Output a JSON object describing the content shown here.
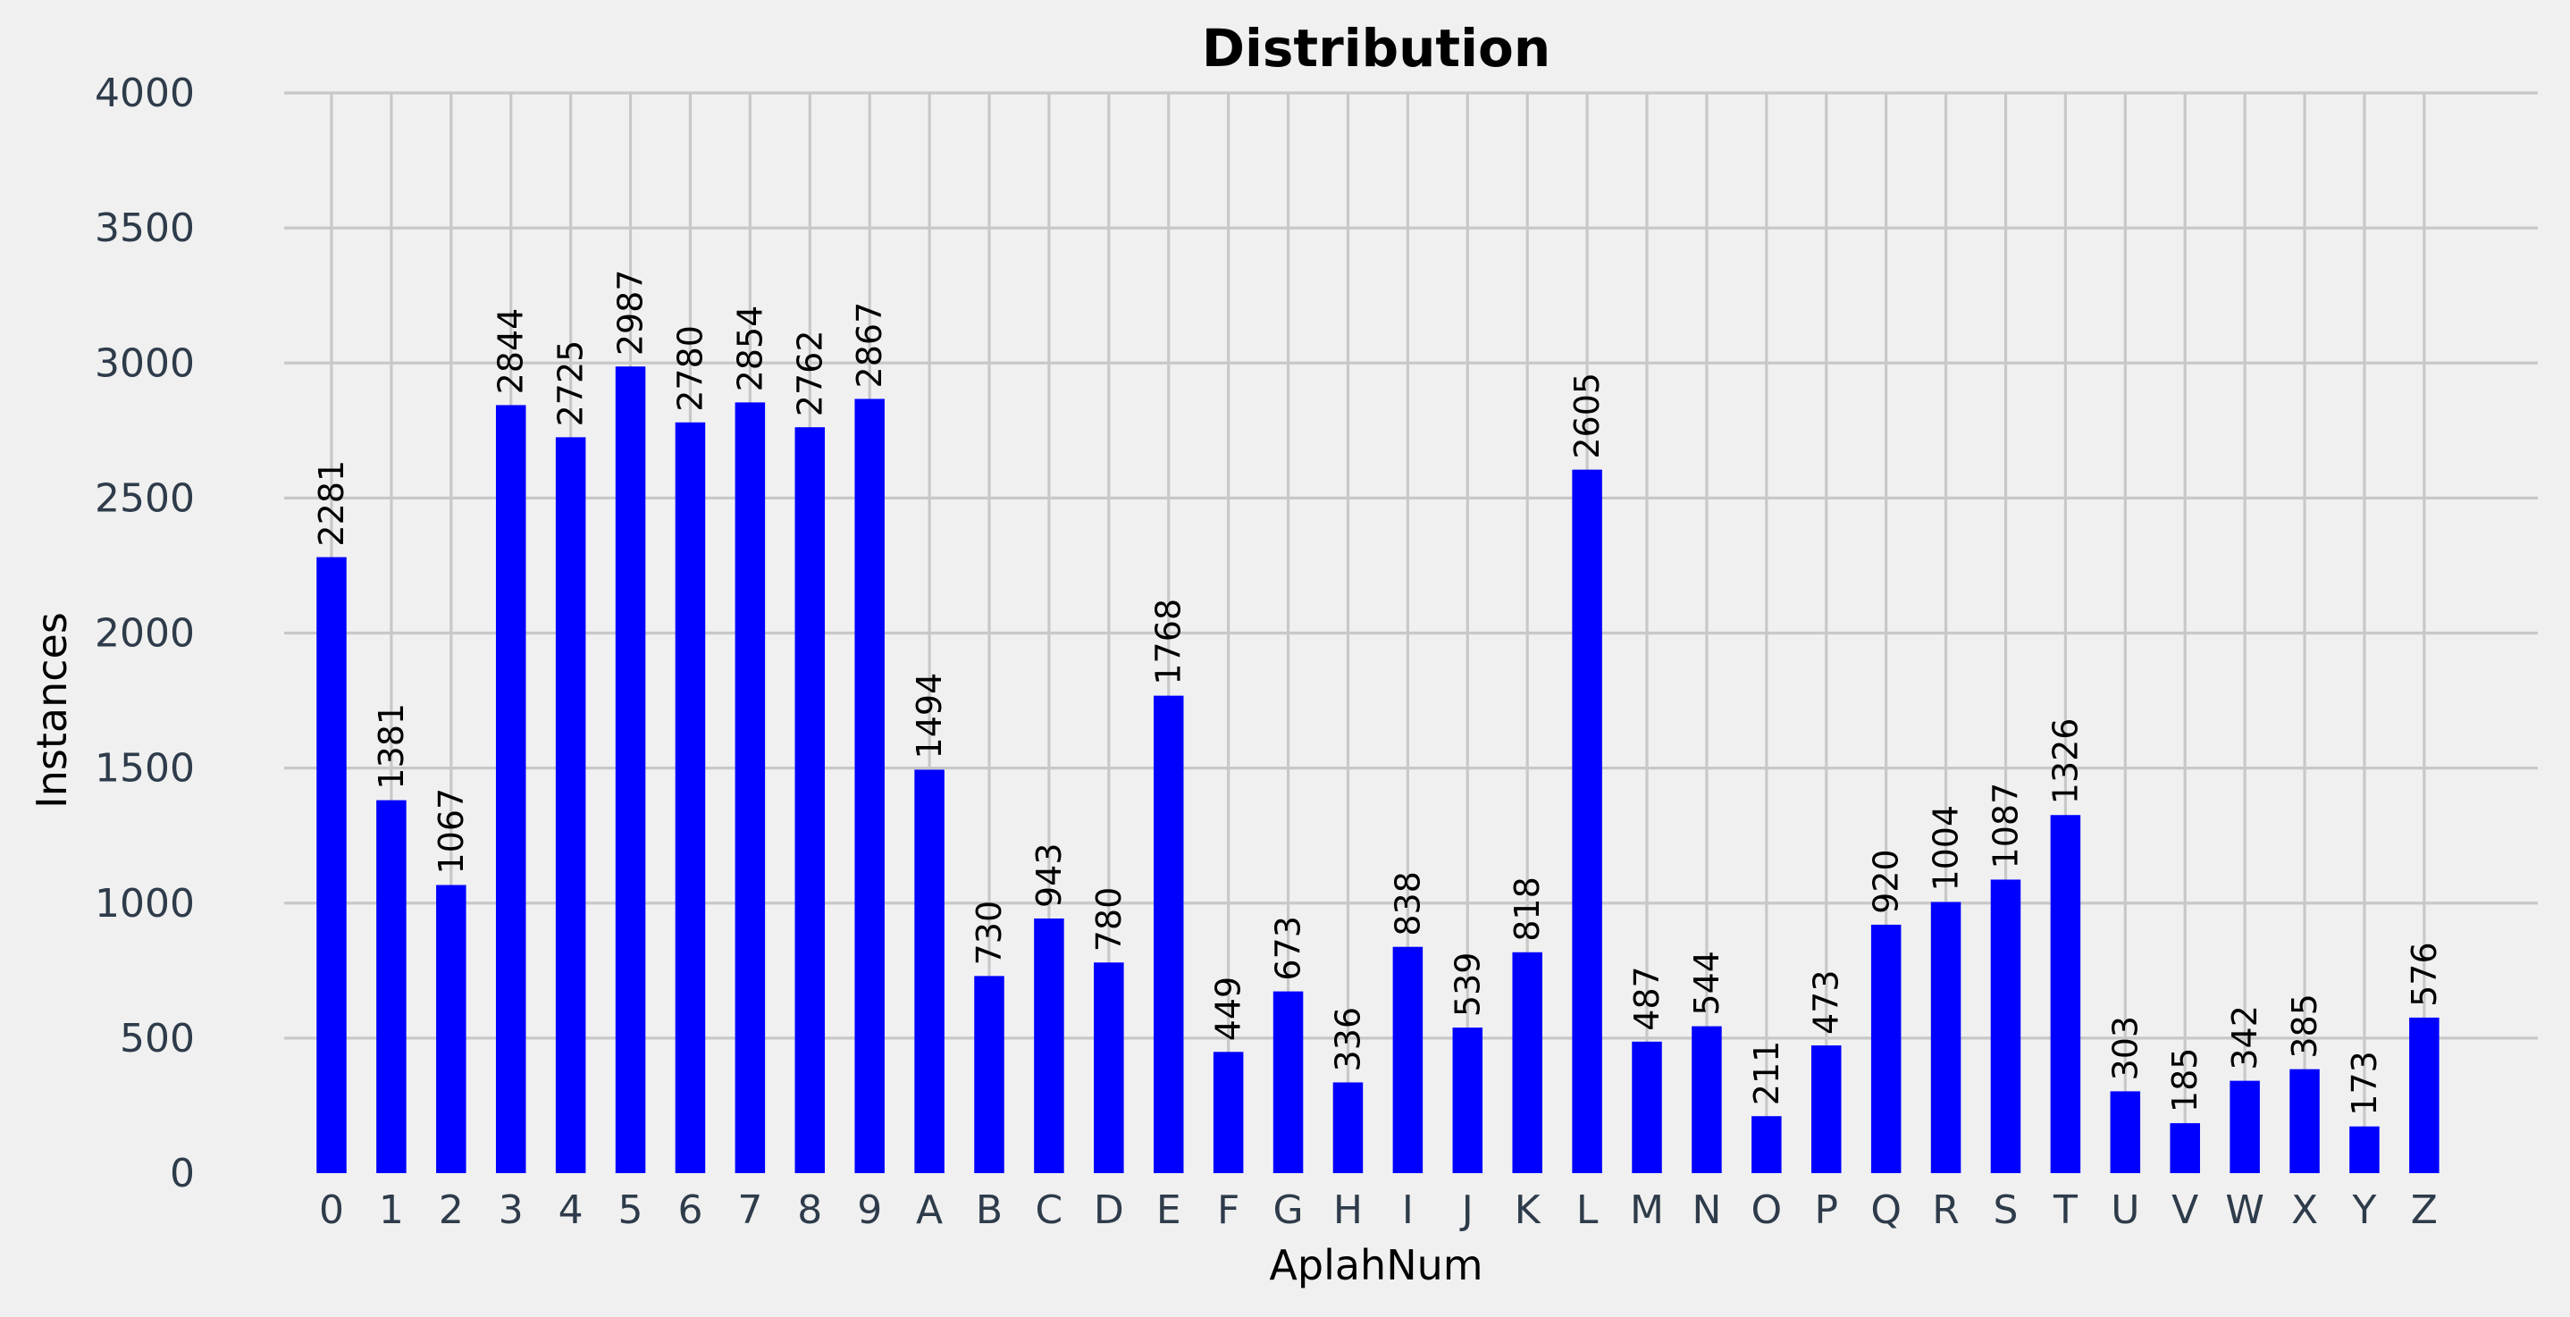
{
  "chart_data": {
    "type": "bar",
    "title": "Distribution",
    "xlabel": "AplahNum",
    "ylabel": "Instances",
    "ylim": [
      0,
      4000
    ],
    "yticks": [
      0,
      500,
      1000,
      1500,
      2000,
      2500,
      3000,
      3500,
      4000
    ],
    "grid": true,
    "bar_color": "#0000ff",
    "background": "#f0f0f0",
    "categories": [
      "0",
      "1",
      "2",
      "3",
      "4",
      "5",
      "6",
      "7",
      "8",
      "9",
      "A",
      "B",
      "C",
      "D",
      "E",
      "F",
      "G",
      "H",
      "I",
      "J",
      "K",
      "L",
      "M",
      "N",
      "O",
      "P",
      "Q",
      "R",
      "S",
      "T",
      "U",
      "V",
      "W",
      "X",
      "Y",
      "Z"
    ],
    "values": [
      2281,
      1381,
      1067,
      2844,
      2725,
      2987,
      2780,
      2854,
      2762,
      2867,
      1494,
      730,
      943,
      780,
      1768,
      449,
      673,
      336,
      838,
      539,
      818,
      2605,
      487,
      544,
      211,
      473,
      920,
      1004,
      1087,
      1326,
      303,
      185,
      342,
      385,
      173,
      576
    ]
  }
}
